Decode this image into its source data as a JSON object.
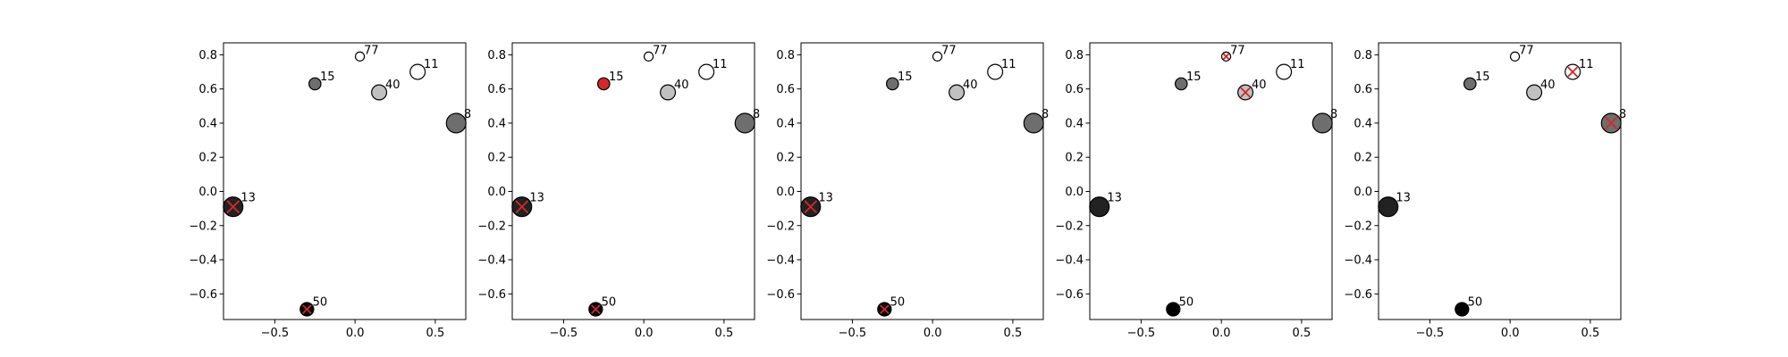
{
  "colors": {
    "axes": "#000000",
    "text": "#000000",
    "marker_edge": "#000000",
    "selected_fill": "#d62728",
    "x_marker": "#d62728"
  },
  "chart_data": [
    {
      "type": "scatter",
      "title": "",
      "xlabel": "",
      "ylabel": "",
      "xlim": [
        -0.82,
        0.69
      ],
      "ylim": [
        -0.75,
        0.87
      ],
      "xticks": [
        -0.5,
        0.0,
        0.5
      ],
      "xtick_labels": [
        "−0.5",
        "0.0",
        "0.5"
      ],
      "yticks": [
        -0.6,
        -0.4,
        -0.2,
        0.0,
        0.2,
        0.4,
        0.6,
        0.8
      ],
      "ytick_labels": [
        "−0.6",
        "−0.4",
        "−0.2",
        "0.0",
        "0.2",
        "0.4",
        "0.6",
        "0.8"
      ],
      "grid": false,
      "points": [
        {
          "label": "77",
          "x": 0.03,
          "y": 0.79,
          "size": 0.6,
          "fill": "#ffffff",
          "crossed": false
        },
        {
          "label": "15",
          "x": -0.25,
          "y": 0.63,
          "size": 0.8,
          "fill": "#6e6e6e",
          "crossed": false
        },
        {
          "label": "11",
          "x": 0.39,
          "y": 0.7,
          "size": 1.0,
          "fill": "#ffffff",
          "crossed": false
        },
        {
          "label": "40",
          "x": 0.15,
          "y": 0.58,
          "size": 1.0,
          "fill": "#c0c0c0",
          "crossed": false
        },
        {
          "label": "8",
          "x": 0.63,
          "y": 0.4,
          "size": 1.3,
          "fill": "#6e6e6e",
          "crossed": false
        },
        {
          "label": "13",
          "x": -0.76,
          "y": -0.09,
          "size": 1.3,
          "fill": "#222222",
          "crossed": true
        },
        {
          "label": "50",
          "x": -0.3,
          "y": -0.69,
          "size": 0.9,
          "fill": "#000000",
          "crossed": true
        }
      ]
    },
    {
      "type": "scatter",
      "title": "",
      "xlabel": "",
      "ylabel": "",
      "xlim": [
        -0.82,
        0.69
      ],
      "ylim": [
        -0.75,
        0.87
      ],
      "xticks": [
        -0.5,
        0.0,
        0.5
      ],
      "xtick_labels": [
        "−0.5",
        "0.0",
        "0.5"
      ],
      "yticks": [
        -0.6,
        -0.4,
        -0.2,
        0.0,
        0.2,
        0.4,
        0.6,
        0.8
      ],
      "ytick_labels": [
        "−0.6",
        "−0.4",
        "−0.2",
        "0.0",
        "0.2",
        "0.4",
        "0.6",
        "0.8"
      ],
      "grid": false,
      "points": [
        {
          "label": "77",
          "x": 0.03,
          "y": 0.79,
          "size": 0.6,
          "fill": "#ffffff",
          "crossed": false
        },
        {
          "label": "15",
          "x": -0.25,
          "y": 0.63,
          "size": 0.8,
          "fill": "#d62728",
          "crossed": true
        },
        {
          "label": "11",
          "x": 0.39,
          "y": 0.7,
          "size": 1.0,
          "fill": "#ffffff",
          "crossed": false
        },
        {
          "label": "40",
          "x": 0.15,
          "y": 0.58,
          "size": 1.0,
          "fill": "#c0c0c0",
          "crossed": false
        },
        {
          "label": "8",
          "x": 0.63,
          "y": 0.4,
          "size": 1.3,
          "fill": "#6e6e6e",
          "crossed": false
        },
        {
          "label": "13",
          "x": -0.76,
          "y": -0.09,
          "size": 1.3,
          "fill": "#222222",
          "crossed": true
        },
        {
          "label": "50",
          "x": -0.3,
          "y": -0.69,
          "size": 0.9,
          "fill": "#000000",
          "crossed": true
        }
      ]
    },
    {
      "type": "scatter",
      "title": "",
      "xlabel": "",
      "ylabel": "",
      "xlim": [
        -0.82,
        0.69
      ],
      "ylim": [
        -0.75,
        0.87
      ],
      "xticks": [
        -0.5,
        0.0,
        0.5
      ],
      "xtick_labels": [
        "−0.5",
        "0.0",
        "0.5"
      ],
      "yticks": [
        -0.6,
        -0.4,
        -0.2,
        0.0,
        0.2,
        0.4,
        0.6,
        0.8
      ],
      "ytick_labels": [
        "−0.6",
        "−0.4",
        "−0.2",
        "0.0",
        "0.2",
        "0.4",
        "0.6",
        "0.8"
      ],
      "grid": false,
      "points": [
        {
          "label": "77",
          "x": 0.03,
          "y": 0.79,
          "size": 0.6,
          "fill": "#ffffff",
          "crossed": false
        },
        {
          "label": "15",
          "x": -0.25,
          "y": 0.63,
          "size": 0.8,
          "fill": "#6e6e6e",
          "crossed": false
        },
        {
          "label": "11",
          "x": 0.39,
          "y": 0.7,
          "size": 1.0,
          "fill": "#ffffff",
          "crossed": false
        },
        {
          "label": "40",
          "x": 0.15,
          "y": 0.58,
          "size": 1.0,
          "fill": "#c0c0c0",
          "crossed": false
        },
        {
          "label": "8",
          "x": 0.63,
          "y": 0.4,
          "size": 1.3,
          "fill": "#6e6e6e",
          "crossed": false
        },
        {
          "label": "13",
          "x": -0.76,
          "y": -0.09,
          "size": 1.3,
          "fill": "#222222",
          "crossed": true
        },
        {
          "label": "50",
          "x": -0.3,
          "y": -0.69,
          "size": 0.9,
          "fill": "#000000",
          "crossed": true
        }
      ]
    },
    {
      "type": "scatter",
      "title": "",
      "xlabel": "",
      "ylabel": "",
      "xlim": [
        -0.82,
        0.69
      ],
      "ylim": [
        -0.75,
        0.87
      ],
      "xticks": [
        -0.5,
        0.0,
        0.5
      ],
      "xtick_labels": [
        "−0.5",
        "0.0",
        "0.5"
      ],
      "yticks": [
        -0.6,
        -0.4,
        -0.2,
        0.0,
        0.2,
        0.4,
        0.6,
        0.8
      ],
      "ytick_labels": [
        "−0.6",
        "−0.4",
        "−0.2",
        "0.0",
        "0.2",
        "0.4",
        "0.6",
        "0.8"
      ],
      "grid": false,
      "points": [
        {
          "label": "77",
          "x": 0.03,
          "y": 0.79,
          "size": 0.6,
          "fill": "#ffffff",
          "crossed": true
        },
        {
          "label": "15",
          "x": -0.25,
          "y": 0.63,
          "size": 0.8,
          "fill": "#6e6e6e",
          "crossed": false
        },
        {
          "label": "11",
          "x": 0.39,
          "y": 0.7,
          "size": 1.0,
          "fill": "#ffffff",
          "crossed": false
        },
        {
          "label": "40",
          "x": 0.15,
          "y": 0.58,
          "size": 1.0,
          "fill": "#c0c0c0",
          "crossed": true
        },
        {
          "label": "8",
          "x": 0.63,
          "y": 0.4,
          "size": 1.3,
          "fill": "#6e6e6e",
          "crossed": false
        },
        {
          "label": "13",
          "x": -0.76,
          "y": -0.09,
          "size": 1.3,
          "fill": "#222222",
          "crossed": false
        },
        {
          "label": "50",
          "x": -0.3,
          "y": -0.69,
          "size": 0.9,
          "fill": "#000000",
          "crossed": false
        }
      ]
    },
    {
      "type": "scatter",
      "title": "",
      "xlabel": "",
      "ylabel": "",
      "xlim": [
        -0.82,
        0.69
      ],
      "ylim": [
        -0.75,
        0.87
      ],
      "xticks": [
        -0.5,
        0.0,
        0.5
      ],
      "xtick_labels": [
        "−0.5",
        "0.0",
        "0.5"
      ],
      "yticks": [
        -0.6,
        -0.4,
        -0.2,
        0.0,
        0.2,
        0.4,
        0.6,
        0.8
      ],
      "ytick_labels": [
        "−0.6",
        "−0.4",
        "−0.2",
        "0.0",
        "0.2",
        "0.4",
        "0.6",
        "0.8"
      ],
      "grid": false,
      "points": [
        {
          "label": "77",
          "x": 0.03,
          "y": 0.79,
          "size": 0.6,
          "fill": "#ffffff",
          "crossed": false
        },
        {
          "label": "15",
          "x": -0.25,
          "y": 0.63,
          "size": 0.8,
          "fill": "#6e6e6e",
          "crossed": false
        },
        {
          "label": "11",
          "x": 0.39,
          "y": 0.7,
          "size": 1.0,
          "fill": "#ffffff",
          "crossed": true
        },
        {
          "label": "40",
          "x": 0.15,
          "y": 0.58,
          "size": 1.0,
          "fill": "#c0c0c0",
          "crossed": false
        },
        {
          "label": "8",
          "x": 0.63,
          "y": 0.4,
          "size": 1.3,
          "fill": "#6e6e6e",
          "crossed": true
        },
        {
          "label": "13",
          "x": -0.76,
          "y": -0.09,
          "size": 1.3,
          "fill": "#222222",
          "crossed": false
        },
        {
          "label": "50",
          "x": -0.3,
          "y": -0.69,
          "size": 0.9,
          "fill": "#000000",
          "crossed": false
        }
      ]
    }
  ]
}
